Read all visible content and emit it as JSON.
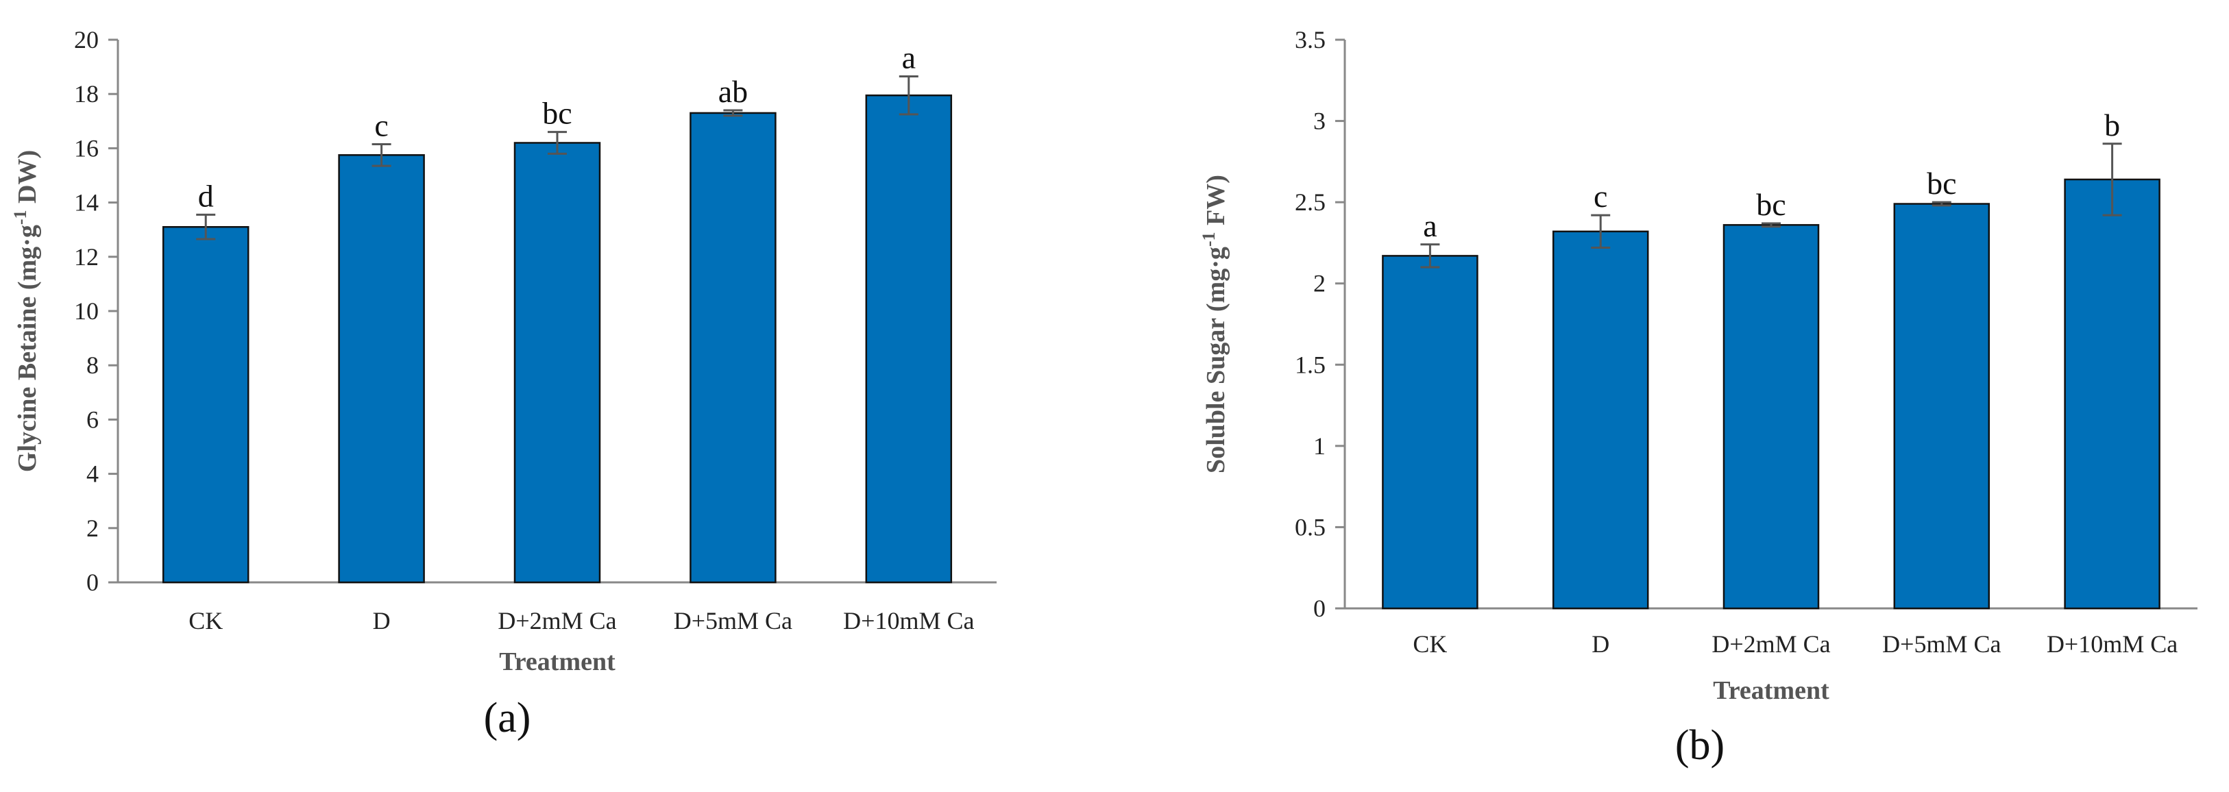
{
  "chart_data": [
    {
      "type": "bar",
      "panel_label": "(a)",
      "categories": [
        "CK",
        "D",
        "D+2mM Ca",
        "D+5mM Ca",
        "D+10mM Ca"
      ],
      "values": [
        13.1,
        15.75,
        16.2,
        17.3,
        17.95
      ],
      "errors": [
        0.45,
        0.4,
        0.4,
        0.1,
        0.7
      ],
      "significance": [
        "d",
        "c",
        "bc",
        "ab",
        "a"
      ],
      "xlabel": "Treatment",
      "ylabel": {
        "main": "Glycine Betaine (mg·g",
        "sup": "-1",
        "tail": " DW)"
      },
      "ylim": [
        0,
        20
      ],
      "yticks": [
        0,
        2,
        4,
        6,
        8,
        10,
        12,
        14,
        16,
        18,
        20
      ],
      "color": "#0070b8",
      "grid": false
    },
    {
      "type": "bar",
      "panel_label": "(b)",
      "categories": [
        "CK",
        "D",
        "D+2mM Ca",
        "D+5mM Ca",
        "D+10mM Ca"
      ],
      "values": [
        2.17,
        2.32,
        2.36,
        2.49,
        2.64
      ],
      "errors": [
        0.07,
        0.1,
        0.01,
        0.01,
        0.22
      ],
      "significance": [
        "a",
        "c",
        "bc",
        "bc",
        "b"
      ],
      "xlabel": "Treatment",
      "ylabel": {
        "main": "Soluble Sugar (mg·g",
        "sup": "-1",
        "tail": " FW)"
      },
      "ylim": [
        0,
        3.5
      ],
      "yticks": [
        "0",
        "0.5",
        "1",
        "1.5",
        "2",
        "2.5",
        "3",
        "3.5"
      ],
      "color": "#0070b8",
      "grid": false
    }
  ]
}
